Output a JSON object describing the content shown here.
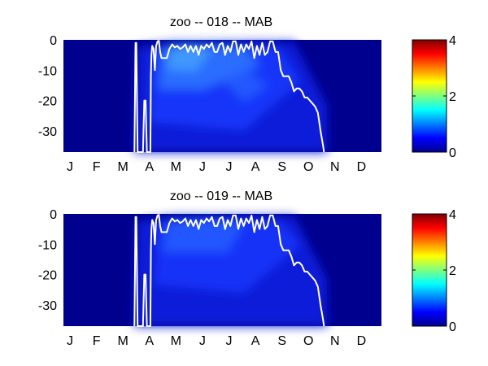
{
  "chart_data": [
    {
      "type": "heatmap",
      "title": "zoo -- 018 -- MAB",
      "months": [
        "J",
        "F",
        "M",
        "A",
        "M",
        "J",
        "J",
        "A",
        "S",
        "O",
        "N",
        "D"
      ],
      "y_ticks": [
        "0",
        "-10",
        "-20",
        "-30"
      ],
      "ylim": [
        -37,
        0
      ],
      "xlim": [
        0,
        12
      ],
      "colorbar": {
        "ticks": [
          "0",
          "2",
          "4"
        ],
        "range": [
          0,
          4
        ],
        "colormap": "jet"
      },
      "line_color": "#ffffff",
      "line": {
        "x": [
          2.68,
          2.72,
          2.75,
          2.8,
          3.0,
          3.05,
          3.1,
          3.15,
          3.28,
          3.3,
          3.32,
          3.35,
          3.4,
          3.45,
          3.5,
          3.55,
          3.6,
          3.65,
          3.7,
          3.75,
          3.82,
          3.9,
          4.0,
          4.1,
          4.2,
          4.3,
          4.4,
          4.5,
          4.6,
          4.7,
          4.8,
          4.9,
          5.0,
          5.1,
          5.2,
          5.3,
          5.4,
          5.5,
          5.6,
          5.7,
          5.8,
          5.9,
          6.0,
          6.1,
          6.2,
          6.3,
          6.4,
          6.5,
          6.6,
          6.7,
          6.8,
          6.9,
          7.0,
          7.1,
          7.2,
          7.3,
          7.4,
          7.5,
          7.6,
          7.7,
          7.8,
          7.9,
          8.0,
          8.1,
          8.2,
          8.3,
          8.4,
          8.5,
          8.6,
          8.7,
          8.8,
          8.9,
          9.0,
          9.1,
          9.2,
          9.3,
          9.4,
          9.5,
          9.6,
          9.7,
          9.8,
          9.83
        ],
        "y": [
          -37,
          -1,
          -1,
          -37,
          -37,
          -20,
          -20,
          -37,
          -37,
          -12,
          -5,
          -2,
          -3,
          -10,
          -2,
          -0.5,
          -0.3,
          -4,
          -6,
          -6,
          -6,
          -6,
          -3,
          -1.5,
          -2.5,
          -2,
          -3,
          -2.5,
          -1.5,
          -4,
          -2,
          -4,
          -2,
          -5,
          -2,
          -3,
          -1.5,
          -2.5,
          -1,
          -4,
          -4,
          -1.5,
          -1,
          -5,
          -2,
          -4,
          -0.5,
          -0.5,
          -5,
          -1.5,
          -4,
          -1.5,
          -3,
          -0.5,
          -6,
          -2,
          -5,
          -1,
          -5,
          -4,
          -0.5,
          -0.5,
          -4,
          -4,
          -10,
          -12,
          -12,
          -12,
          -14,
          -17,
          -16,
          -16,
          -17,
          -19,
          -19,
          -20,
          -21,
          -22,
          -24,
          -30,
          -35,
          -37
        ]
      }
    },
    {
      "type": "heatmap",
      "title": "zoo -- 019 -- MAB",
      "months": [
        "J",
        "F",
        "M",
        "A",
        "M",
        "J",
        "J",
        "A",
        "S",
        "O",
        "N",
        "D"
      ],
      "y_ticks": [
        "0",
        "-10",
        "-20",
        "-30"
      ],
      "ylim": [
        -37,
        0
      ],
      "xlim": [
        0,
        12
      ],
      "colorbar": {
        "ticks": [
          "0",
          "2",
          "4"
        ],
        "range": [
          0,
          4
        ],
        "colormap": "jet"
      },
      "line_color": "#ffffff",
      "line": {
        "x": [
          2.68,
          2.72,
          2.75,
          2.8,
          3.0,
          3.05,
          3.1,
          3.15,
          3.28,
          3.3,
          3.32,
          3.35,
          3.4,
          3.45,
          3.5,
          3.55,
          3.6,
          3.65,
          3.7,
          3.75,
          3.82,
          3.9,
          4.0,
          4.1,
          4.2,
          4.3,
          4.4,
          4.5,
          4.6,
          4.7,
          4.8,
          4.9,
          5.0,
          5.1,
          5.2,
          5.3,
          5.4,
          5.5,
          5.6,
          5.7,
          5.8,
          5.9,
          6.0,
          6.1,
          6.2,
          6.3,
          6.4,
          6.5,
          6.6,
          6.7,
          6.8,
          6.9,
          7.0,
          7.1,
          7.2,
          7.3,
          7.4,
          7.5,
          7.6,
          7.7,
          7.8,
          7.9,
          8.0,
          8.1,
          8.2,
          8.3,
          8.4,
          8.5,
          8.6,
          8.7,
          8.8,
          8.9,
          9.0,
          9.1,
          9.2,
          9.3,
          9.4,
          9.5,
          9.6,
          9.7,
          9.8,
          9.83
        ],
        "y": [
          -37,
          -1,
          -1,
          -37,
          -37,
          -20,
          -20,
          -37,
          -37,
          -12,
          -5,
          -2,
          -3,
          -10,
          -2,
          -0.5,
          -0.3,
          -4,
          -6,
          -6,
          -6,
          -6,
          -3,
          -1.5,
          -2.5,
          -2,
          -3,
          -2.5,
          -1.5,
          -4,
          -2,
          -4,
          -2,
          -5,
          -2,
          -3,
          -1.5,
          -2.5,
          -1,
          -4,
          -4,
          -1.5,
          -1,
          -5,
          -2,
          -4,
          -0.5,
          -0.5,
          -5,
          -1.5,
          -4,
          -1.5,
          -3,
          -0.5,
          -6,
          -2,
          -5,
          -1,
          -5,
          -4,
          -0.5,
          -0.5,
          -4,
          -4,
          -10,
          -12,
          -12,
          -12,
          -14,
          -17,
          -16,
          -16,
          -17,
          -19,
          -19,
          -20,
          -21,
          -22,
          -24,
          -30,
          -35,
          -37
        ]
      }
    }
  ]
}
